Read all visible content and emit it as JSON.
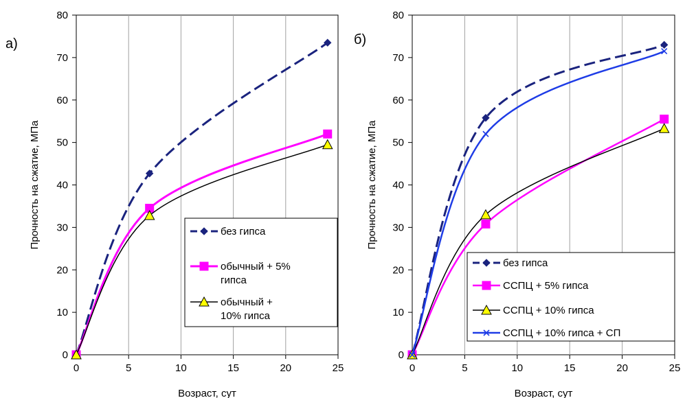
{
  "chart_data": [
    {
      "type": "line",
      "panel_label": "а)",
      "xlabel": "Возраст, сут",
      "ylabel": "Прочность на сжатие, МПа",
      "xlim": [
        0,
        25
      ],
      "ylim": [
        0,
        80
      ],
      "xticks": [
        "0",
        "5",
        "10",
        "15",
        "20",
        "25"
      ],
      "yticks": [
        "0",
        "10",
        "20",
        "30",
        "40",
        "50",
        "60",
        "70",
        "80"
      ],
      "grid": "vertical",
      "legend_position": "bottom-right",
      "series": [
        {
          "name": "без гипса",
          "x": [
            0,
            7,
            24
          ],
          "y": [
            0,
            42.7,
            73.5
          ],
          "color": "#1a237e",
          "dash": true,
          "marker": "diamond",
          "width": 3
        },
        {
          "name": "обычный + 5% гипса",
          "legend_lines": [
            "обычный + 5%",
            "гипса"
          ],
          "x": [
            0,
            7,
            24
          ],
          "y": [
            0,
            34.5,
            52
          ],
          "color": "#ff00ff",
          "dash": false,
          "marker": "square",
          "width": 3
        },
        {
          "name": "обычный + 10% гипса",
          "legend_lines": [
            "обычный +",
            "10% гипса"
          ],
          "x": [
            0,
            7,
            24
          ],
          "y": [
            0,
            32.8,
            49.5
          ],
          "color": "#000000",
          "dash": false,
          "marker": "triangle",
          "width": 1.5
        }
      ]
    },
    {
      "type": "line",
      "panel_label": "б)",
      "xlabel": "Возраст, сут",
      "ylabel": "Прочность на сжатие, МПа",
      "xlim": [
        0,
        25
      ],
      "ylim": [
        0,
        80
      ],
      "xticks": [
        "0",
        "5",
        "10",
        "15",
        "20",
        "25"
      ],
      "yticks": [
        "0",
        "10",
        "20",
        "30",
        "40",
        "50",
        "60",
        "70",
        "80"
      ],
      "grid": "vertical",
      "legend_position": "bottom-right",
      "series": [
        {
          "name": "без гипса",
          "x": [
            0,
            7,
            24
          ],
          "y": [
            0,
            55.8,
            73
          ],
          "color": "#1a237e",
          "dash": true,
          "marker": "diamond",
          "width": 3
        },
        {
          "name": "ССПЦ + 5% гипса",
          "x": [
            0,
            7,
            24
          ],
          "y": [
            0,
            30.8,
            55.5
          ],
          "color": "#ff00ff",
          "dash": false,
          "marker": "square",
          "width": 2.5
        },
        {
          "name": "ССПЦ + 10% гипса",
          "x": [
            0,
            7,
            24
          ],
          "y": [
            0,
            33,
            53.3
          ],
          "color": "#000000",
          "dash": false,
          "marker": "triangle",
          "width": 1.5
        },
        {
          "name": "ССПЦ + 10% гипса + СП",
          "x": [
            0,
            7,
            24
          ],
          "y": [
            0,
            52,
            71.5
          ],
          "color": "#1e3ce6",
          "dash": false,
          "marker": "x",
          "width": 2.5
        }
      ]
    }
  ]
}
